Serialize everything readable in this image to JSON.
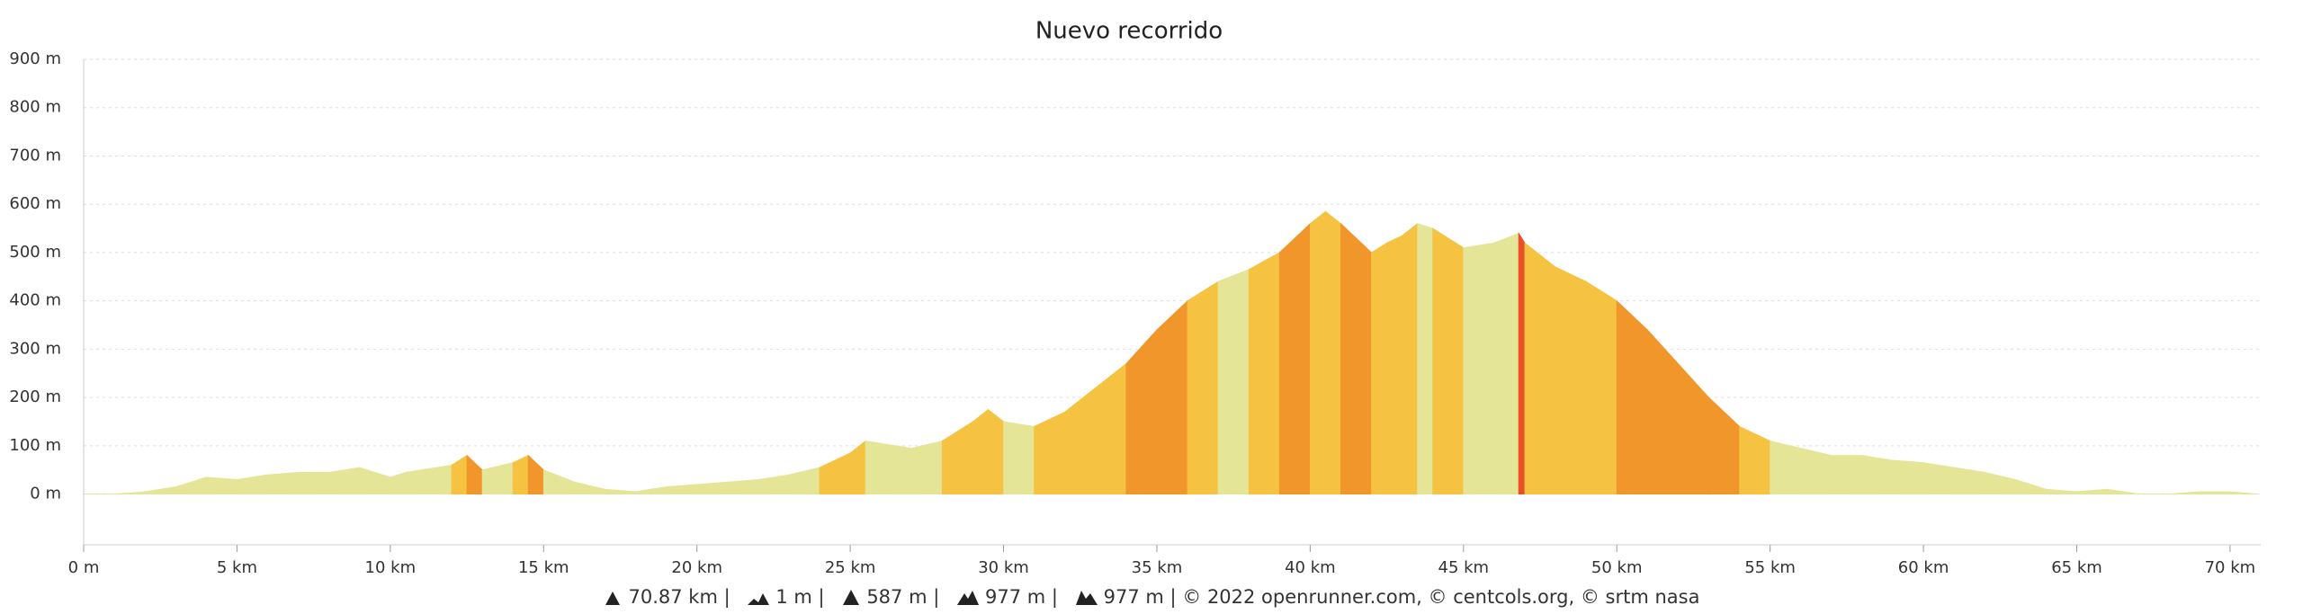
{
  "chart_data": {
    "type": "elevation-area",
    "title": "Nuevo recorrido",
    "x": [
      0,
      1,
      2,
      3,
      4,
      5,
      6,
      7,
      8,
      9,
      10,
      10.5,
      11,
      12,
      12.5,
      13,
      14,
      14.5,
      15,
      16,
      17,
      18,
      19,
      20,
      21,
      22,
      23,
      24,
      25,
      25.5,
      26,
      27,
      28,
      29,
      29.5,
      30,
      31,
      32,
      33,
      34,
      35,
      36,
      37,
      38,
      39,
      40,
      40.5,
      41,
      42,
      42.5,
      43,
      43.5,
      44,
      45,
      46,
      46.8,
      47,
      48,
      49,
      50,
      51,
      52,
      53,
      54,
      55,
      56,
      57,
      58,
      59,
      60,
      61,
      62,
      63,
      64,
      65,
      66,
      67,
      68,
      69,
      70,
      70.87
    ],
    "values": [
      0,
      0,
      5,
      15,
      35,
      30,
      40,
      45,
      45,
      55,
      35,
      45,
      50,
      60,
      80,
      50,
      65,
      80,
      50,
      25,
      10,
      5,
      15,
      20,
      25,
      30,
      40,
      55,
      85,
      110,
      105,
      95,
      110,
      150,
      175,
      150,
      140,
      170,
      220,
      270,
      340,
      400,
      440,
      465,
      500,
      560,
      585,
      560,
      500,
      520,
      535,
      560,
      550,
      510,
      520,
      540,
      520,
      470,
      440,
      400,
      340,
      270,
      200,
      140,
      110,
      95,
      80,
      80,
      70,
      65,
      55,
      45,
      30,
      10,
      5,
      10,
      0,
      0,
      5,
      5,
      0
    ],
    "colors": [
      "#e4e597",
      "#f5c242",
      "#f0962a",
      "#e8502a"
    ],
    "xlim": [
      0,
      71
    ],
    "ylim": [
      -105,
      900
    ],
    "xticks": [
      {
        "value": 0,
        "label": "0 m"
      },
      {
        "value": 5,
        "label": "5 km"
      },
      {
        "value": 10,
        "label": "10 km"
      },
      {
        "value": 15,
        "label": "15 km"
      },
      {
        "value": 20,
        "label": "20 km"
      },
      {
        "value": 25,
        "label": "25 km"
      },
      {
        "value": 30,
        "label": "30 km"
      },
      {
        "value": 35,
        "label": "35 km"
      },
      {
        "value": 40,
        "label": "40 km"
      },
      {
        "value": 45,
        "label": "45 km"
      },
      {
        "value": 50,
        "label": "50 km"
      },
      {
        "value": 55,
        "label": "55 km"
      },
      {
        "value": 60,
        "label": "60 km"
      },
      {
        "value": 65,
        "label": "65 km"
      },
      {
        "value": 70,
        "label": "70 km"
      }
    ],
    "yticks": [
      {
        "value": 0,
        "label": "0 m"
      },
      {
        "value": 100,
        "label": "100 m"
      },
      {
        "value": 200,
        "label": "200 m"
      },
      {
        "value": 300,
        "label": "300 m"
      },
      {
        "value": 400,
        "label": "400 m"
      },
      {
        "value": 500,
        "label": "500 m"
      },
      {
        "value": 600,
        "label": "600 m"
      },
      {
        "value": 700,
        "label": "700 m"
      },
      {
        "value": 800,
        "label": "800 m"
      },
      {
        "value": 900,
        "label": "900 m"
      }
    ],
    "grid": true,
    "footer": {
      "distance": "70.87 km |",
      "min": "1 m |",
      "max": "587 m |",
      "gain": "977 m |",
      "loss": "977 m | © 2022 openrunner.com, © centcols.org, © srtm nasa"
    }
  }
}
